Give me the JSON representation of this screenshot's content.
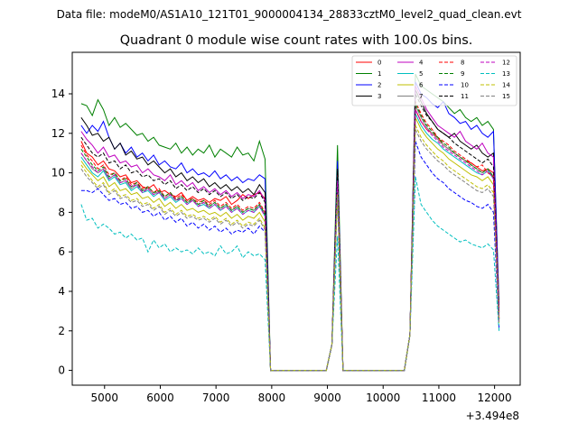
{
  "chart_data": {
    "type": "line",
    "suptitle": "Data file: modeM0/AS1A10_121T01_9000004134_28833cztM0_level2_quad_clean.evt",
    "title": "Quadrant 0 module wise count rates with 100.0s bins.",
    "xlabel": "",
    "ylabel": "",
    "x_offset_label": "+3.494e8",
    "xlim": [
      4420,
      12460
    ],
    "ylim": [
      -0.75,
      16.1
    ],
    "x_ticks": [
      5000,
      6000,
      7000,
      8000,
      9000,
      10000,
      11000,
      12000
    ],
    "y_ticks": [
      0,
      2,
      4,
      6,
      8,
      10,
      12,
      14
    ],
    "legend_position": "top-right",
    "x": [
      4580,
      4680,
      4780,
      4880,
      4980,
      5080,
      5180,
      5280,
      5380,
      5480,
      5580,
      5680,
      5780,
      5880,
      5980,
      6080,
      6180,
      6280,
      6380,
      6480,
      6580,
      6680,
      6780,
      6880,
      6980,
      7080,
      7180,
      7280,
      7380,
      7480,
      7580,
      7680,
      7780,
      7880,
      7980,
      8080,
      8180,
      8280,
      8380,
      8480,
      8580,
      8680,
      8780,
      8880,
      8980,
      9080,
      9180,
      9280,
      9380,
      9480,
      9580,
      9680,
      9780,
      9880,
      9980,
      10080,
      10180,
      10280,
      10380,
      10480,
      10580,
      10680,
      10780,
      10880,
      10980,
      11080,
      11180,
      11280,
      11380,
      11480,
      11580,
      11680,
      11780,
      11880,
      11980,
      12080
    ],
    "series": [
      {
        "name": "0",
        "color": "#ff0000",
        "dash": "solid",
        "profile": [
          11.6,
          11.0,
          10.8,
          10.4,
          10.6,
          10.2,
          10.1,
          9.8,
          9.9,
          9.5,
          9.6,
          9.3,
          9.2,
          9.4,
          9.0,
          9.1,
          8.9,
          8.8,
          9.0,
          8.6,
          8.8,
          8.6,
          8.7,
          8.5,
          8.7,
          8.6,
          8.8,
          8.4,
          8.6,
          8.9,
          8.7,
          8.9,
          9.0,
          8.7
        ],
        "spike": 10.4,
        "end_profile": [
          13.2,
          12.6,
          12.2,
          12.0,
          11.8,
          11.4,
          11.2,
          11.0,
          10.8,
          10.6,
          10.5,
          10.3,
          10.1,
          10.2,
          10.0,
          9.8,
          9.5
        ]
      },
      {
        "name": "1",
        "color": "#008000",
        "dash": "solid",
        "profile": [
          13.5,
          13.4,
          12.9,
          13.7,
          13.2,
          12.4,
          12.8,
          12.3,
          12.5,
          12.2,
          11.9,
          12.0,
          11.6,
          11.8,
          11.4,
          11.3,
          11.2,
          11.5,
          11.0,
          11.3,
          10.9,
          11.2,
          11.0,
          11.4,
          10.8,
          11.2,
          11.0,
          10.8,
          11.3,
          10.9,
          11.0,
          10.6,
          11.6,
          10.7
        ],
        "spike": 11.4,
        "end_profile": [
          15.0,
          14.4,
          14.2,
          14.0,
          13.8,
          13.6,
          13.3,
          13.0,
          13.2,
          12.8,
          12.6,
          12.8,
          12.4,
          12.6,
          12.2,
          11.9,
          11.8
        ]
      },
      {
        "name": "2",
        "color": "#0000ff",
        "dash": "solid",
        "profile": [
          12.4,
          12.0,
          12.4,
          12.1,
          12.6,
          11.8,
          11.2,
          11.5,
          11.0,
          11.3,
          10.8,
          11.0,
          10.6,
          10.9,
          10.4,
          10.6,
          10.3,
          10.2,
          10.5,
          10.0,
          10.2,
          9.9,
          10.0,
          9.8,
          10.1,
          9.7,
          9.9,
          9.6,
          9.8,
          9.5,
          9.7,
          9.6,
          9.9,
          9.7
        ],
        "spike": 10.6,
        "end_profile": [
          14.6,
          14.0,
          13.8,
          13.5,
          13.3,
          13.6,
          13.0,
          12.8,
          12.5,
          12.6,
          12.2,
          12.4,
          12.0,
          11.8,
          12.1,
          11.6,
          11.3
        ]
      },
      {
        "name": "3",
        "color": "#000000",
        "dash": "solid",
        "profile": [
          12.8,
          12.4,
          11.9,
          12.0,
          11.6,
          11.8,
          11.2,
          11.5,
          10.9,
          11.1,
          10.7,
          10.8,
          10.4,
          10.6,
          10.3,
          10.0,
          10.2,
          9.8,
          10.0,
          9.6,
          9.8,
          9.5,
          9.7,
          9.3,
          9.5,
          9.2,
          9.4,
          9.1,
          9.3,
          9.0,
          9.2,
          8.9,
          9.4,
          9.0
        ],
        "spike": 10.1,
        "end_profile": [
          14.2,
          13.6,
          13.0,
          12.6,
          12.2,
          12.0,
          11.8,
          12.0,
          11.6,
          11.4,
          11.2,
          11.4,
          11.0,
          10.8,
          11.0,
          10.9,
          10.6
        ]
      },
      {
        "name": "4",
        "color": "#bf00bf",
        "dash": "solid",
        "profile": [
          12.1,
          11.7,
          11.4,
          11.0,
          11.3,
          10.8,
          10.9,
          10.5,
          10.6,
          10.3,
          10.4,
          10.0,
          10.2,
          9.9,
          9.8,
          9.6,
          9.9,
          9.4,
          9.6,
          9.3,
          9.5,
          9.1,
          9.3,
          9.0,
          9.2,
          8.9,
          9.1,
          8.8,
          9.0,
          8.7,
          8.9,
          8.8,
          9.1,
          8.6
        ],
        "spike": 10.0,
        "end_profile": [
          14.4,
          13.8,
          13.2,
          12.8,
          12.4,
          12.2,
          12.0,
          11.8,
          12.1,
          11.6,
          11.4,
          11.2,
          11.5,
          11.0,
          10.8,
          10.6,
          10.5
        ]
      },
      {
        "name": "5",
        "color": "#00bfbf",
        "dash": "solid",
        "profile": [
          10.8,
          10.4,
          10.0,
          9.8,
          10.1,
          9.6,
          9.8,
          9.4,
          9.5,
          9.1,
          9.3,
          9.0,
          9.1,
          8.8,
          9.0,
          8.6,
          8.8,
          8.5,
          8.7,
          8.4,
          8.6,
          8.3,
          8.4,
          8.2,
          8.4,
          8.1,
          8.3,
          8.0,
          8.2,
          7.9,
          8.1,
          8.0,
          8.3,
          7.8
        ],
        "spike": 9.4,
        "end_profile": [
          13.0,
          12.4,
          12.0,
          11.7,
          11.5,
          11.2,
          11.0,
          10.8,
          10.6,
          10.4,
          10.2,
          10.0,
          9.9,
          10.1,
          9.7,
          9.5,
          9.3
        ]
      },
      {
        "name": "6",
        "color": "#bfbf00",
        "dash": "solid",
        "profile": [
          10.6,
          10.2,
          9.9,
          9.6,
          9.8,
          9.3,
          9.5,
          9.1,
          9.2,
          8.9,
          9.0,
          8.7,
          8.8,
          8.5,
          8.7,
          8.3,
          8.5,
          8.2,
          8.4,
          8.1,
          8.2,
          8.0,
          8.1,
          7.9,
          8.0,
          7.8,
          8.0,
          7.7,
          7.9,
          7.6,
          7.8,
          7.7,
          8.0,
          7.5
        ],
        "spike": 9.1,
        "end_profile": [
          12.8,
          12.2,
          11.8,
          11.5,
          11.2,
          11.0,
          10.7,
          10.5,
          10.3,
          10.1,
          9.9,
          9.8,
          9.6,
          9.8,
          9.4,
          9.2,
          9.0
        ]
      },
      {
        "name": "7",
        "color": "#808080",
        "dash": "solid",
        "profile": [
          11.0,
          10.6,
          10.2,
          10.0,
          10.2,
          9.7,
          9.9,
          9.5,
          9.6,
          9.2,
          9.4,
          9.1,
          9.2,
          8.9,
          9.1,
          8.7,
          8.9,
          8.6,
          8.8,
          8.5,
          8.6,
          8.4,
          8.5,
          8.3,
          8.5,
          8.2,
          8.4,
          8.1,
          8.3,
          8.0,
          8.2,
          8.1,
          8.4,
          7.9
        ],
        "spike": 9.6,
        "end_profile": [
          13.4,
          12.8,
          12.3,
          12.0,
          11.7,
          11.4,
          11.2,
          11.0,
          10.8,
          10.6,
          10.4,
          10.2,
          10.0,
          10.2,
          9.8,
          9.6,
          9.4
        ]
      },
      {
        "name": "8",
        "color": "#ff0000",
        "dash": "dashed",
        "profile": [
          11.4,
          10.9,
          10.6,
          10.2,
          10.4,
          9.9,
          10.0,
          9.6,
          9.8,
          9.4,
          9.5,
          9.2,
          9.3,
          9.0,
          9.2,
          8.8,
          9.0,
          8.7,
          8.9,
          8.6,
          8.7,
          8.5,
          8.6,
          8.4,
          8.6,
          8.3,
          8.5,
          8.2,
          8.4,
          8.1,
          8.3,
          8.2,
          8.5,
          8.0
        ],
        "spike": 9.9,
        "end_profile": [
          13.6,
          13.0,
          12.5,
          12.2,
          11.8,
          11.6,
          11.4,
          11.1,
          10.9,
          10.7,
          10.5,
          10.3,
          10.4,
          10.0,
          9.8,
          9.6,
          9.4
        ]
      },
      {
        "name": "9",
        "color": "#008000",
        "dash": "dashed",
        "profile": [
          11.2,
          10.8,
          10.4,
          10.1,
          10.3,
          9.8,
          10.0,
          9.6,
          9.7,
          9.3,
          9.5,
          9.1,
          9.3,
          9.0,
          9.1,
          8.8,
          9.0,
          8.6,
          8.8,
          8.5,
          8.7,
          8.4,
          8.6,
          8.3,
          8.5,
          8.2,
          8.4,
          8.1,
          8.3,
          8.0,
          8.2,
          8.1,
          8.4,
          7.9
        ],
        "spike": 9.8,
        "end_profile": [
          13.5,
          12.9,
          12.4,
          12.1,
          11.8,
          11.5,
          11.3,
          11.0,
          10.8,
          10.6,
          10.4,
          10.2,
          10.0,
          10.2,
          9.8,
          9.6,
          9.3
        ]
      },
      {
        "name": "10",
        "color": "#0000ff",
        "dash": "dashed",
        "profile": [
          9.1,
          9.1,
          9.0,
          9.2,
          8.9,
          8.6,
          8.7,
          8.4,
          8.5,
          8.2,
          8.3,
          8.0,
          8.1,
          7.8,
          8.0,
          7.6,
          7.8,
          7.5,
          7.7,
          7.3,
          7.5,
          7.2,
          7.4,
          7.1,
          7.3,
          7.0,
          7.2,
          6.9,
          7.1,
          7.0,
          7.2,
          6.9,
          7.3,
          7.0
        ],
        "spike": 8.8,
        "end_profile": [
          11.6,
          10.8,
          10.4,
          10.0,
          9.7,
          9.5,
          9.2,
          9.0,
          8.8,
          8.6,
          8.5,
          8.3,
          8.2,
          8.4,
          8.0,
          7.8,
          7.6
        ]
      },
      {
        "name": "11",
        "color": "#000000",
        "dash": "dashed",
        "profile": [
          11.8,
          11.4,
          11.0,
          10.8,
          11.0,
          10.5,
          10.6,
          10.2,
          10.4,
          10.0,
          10.1,
          9.8,
          9.9,
          9.6,
          9.7,
          9.4,
          9.6,
          9.2,
          9.4,
          9.1,
          9.3,
          9.0,
          9.2,
          8.9,
          9.1,
          8.8,
          9.0,
          8.7,
          8.9,
          8.6,
          8.8,
          8.7,
          9.0,
          8.5
        ],
        "spike": 10.2,
        "end_profile": [
          14.0,
          13.4,
          12.9,
          12.6,
          12.2,
          12.0,
          11.8,
          11.5,
          11.3,
          11.1,
          10.9,
          10.7,
          10.5,
          10.7,
          10.3,
          10.1,
          9.9
        ]
      },
      {
        "name": "12",
        "color": "#bf00bf",
        "dash": "dashed",
        "profile": [
          11.0,
          10.6,
          10.3,
          10.0,
          10.2,
          9.7,
          9.9,
          9.5,
          9.6,
          9.3,
          9.4,
          9.0,
          9.2,
          8.9,
          9.0,
          8.7,
          8.9,
          8.6,
          8.7,
          8.4,
          8.6,
          8.3,
          8.5,
          8.2,
          8.4,
          8.1,
          8.3,
          8.0,
          8.2,
          7.9,
          8.1,
          8.0,
          8.3,
          7.8
        ],
        "spike": 9.6,
        "end_profile": [
          13.2,
          12.6,
          12.2,
          11.9,
          11.6,
          11.3,
          11.1,
          10.9,
          10.7,
          10.5,
          10.3,
          10.1,
          9.9,
          10.1,
          9.7,
          9.5,
          9.2
        ]
      },
      {
        "name": "13",
        "color": "#00bfbf",
        "dash": "dashed",
        "profile": [
          8.4,
          7.6,
          7.7,
          7.2,
          7.4,
          7.2,
          6.9,
          7.0,
          6.7,
          6.9,
          6.6,
          6.7,
          6.0,
          6.6,
          6.2,
          6.4,
          6.0,
          6.2,
          6.0,
          6.1,
          5.9,
          6.2,
          5.9,
          6.0,
          5.8,
          6.3,
          5.9,
          6.0,
          6.3,
          5.7,
          6.0,
          5.8,
          5.9,
          5.6
        ],
        "spike": 6.8,
        "end_profile": [
          9.8,
          8.4,
          8.0,
          7.6,
          7.3,
          7.1,
          6.9,
          6.7,
          6.5,
          6.6,
          6.4,
          6.3,
          6.2,
          6.4,
          6.1,
          5.9,
          5.7
        ]
      },
      {
        "name": "14",
        "color": "#bfbf00",
        "dash": "dashed",
        "profile": [
          10.4,
          10.0,
          9.6,
          9.3,
          9.5,
          9.0,
          9.2,
          8.8,
          8.9,
          8.6,
          8.7,
          8.4,
          8.5,
          8.2,
          8.4,
          8.0,
          8.2,
          7.9,
          8.1,
          7.8,
          7.9,
          7.7,
          7.8,
          7.6,
          7.8,
          7.5,
          7.7,
          7.4,
          7.6,
          7.3,
          7.5,
          7.4,
          7.7,
          7.2
        ],
        "spike": 8.9,
        "end_profile": [
          12.4,
          11.8,
          11.4,
          11.1,
          10.8,
          10.6,
          10.3,
          10.1,
          9.9,
          9.7,
          9.5,
          9.3,
          9.2,
          9.4,
          9.0,
          8.8,
          8.6
        ]
      },
      {
        "name": "15",
        "color": "#808080",
        "dash": "dashed",
        "profile": [
          10.2,
          9.8,
          9.5,
          9.2,
          9.4,
          8.9,
          9.1,
          8.7,
          8.8,
          8.5,
          8.6,
          8.3,
          8.4,
          8.1,
          8.3,
          7.9,
          8.1,
          7.8,
          8.0,
          7.7,
          7.8,
          7.6,
          7.7,
          7.5,
          7.7,
          7.4,
          7.6,
          7.3,
          7.5,
          7.2,
          7.4,
          7.3,
          7.6,
          7.1
        ],
        "spike": 8.8,
        "end_profile": [
          12.2,
          11.6,
          11.2,
          10.9,
          10.6,
          10.4,
          10.1,
          9.9,
          9.7,
          9.5,
          9.3,
          9.1,
          9.0,
          9.2,
          8.8,
          8.6,
          8.4
        ]
      }
    ]
  }
}
